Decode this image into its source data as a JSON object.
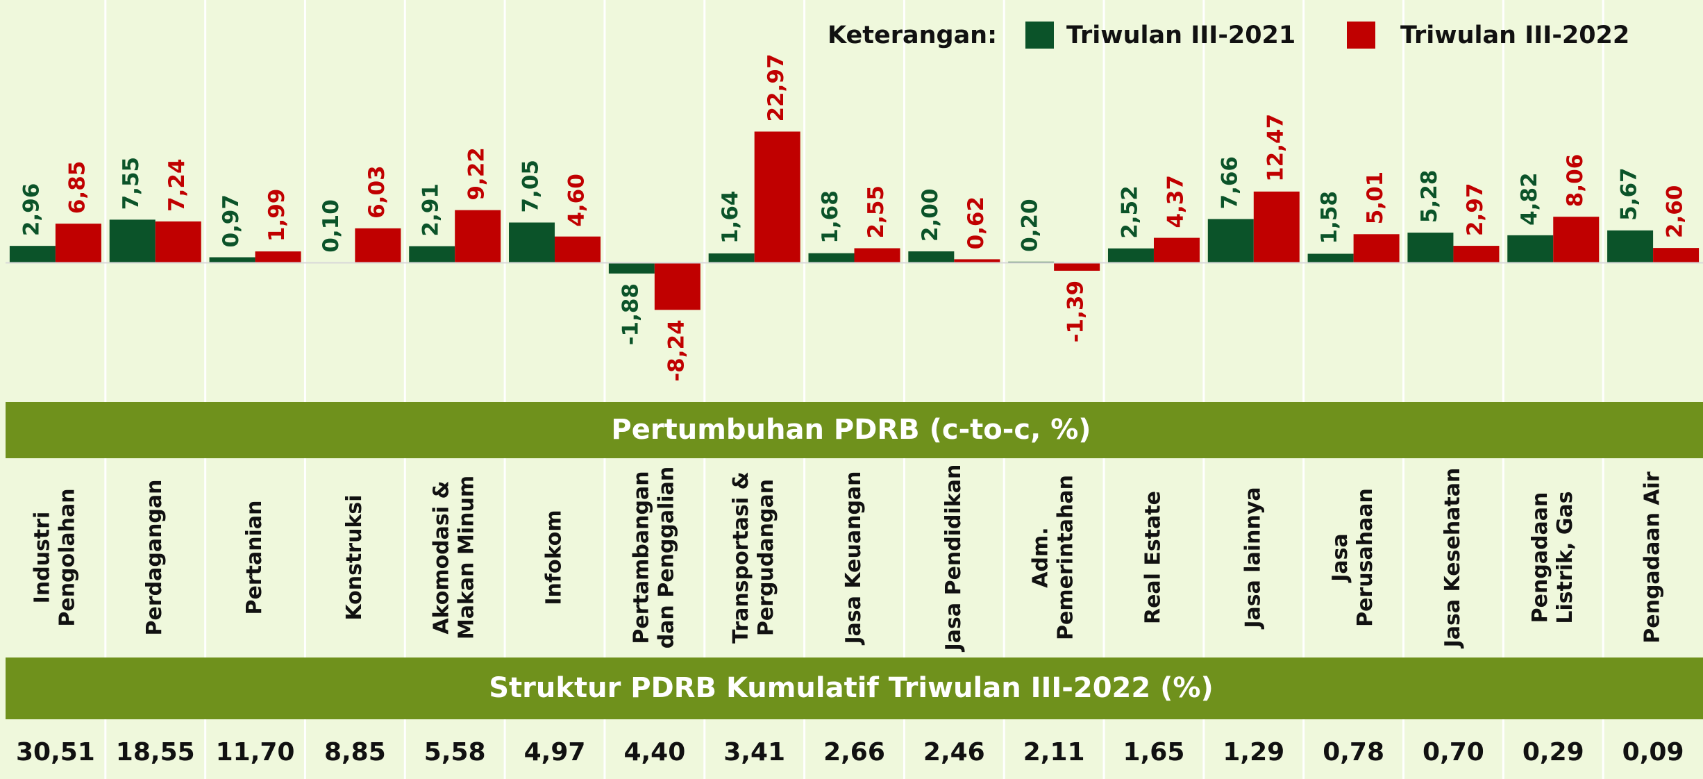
{
  "chart_data": {
    "type": "bar",
    "legend_title": "Keterangan:",
    "title": "Pertumbuhan PDRB (c-to-c, %)",
    "categories": [
      [
        "Industri",
        "Pengolahan"
      ],
      [
        "Perdagangan"
      ],
      [
        "Pertanian"
      ],
      [
        "Konstruksi"
      ],
      [
        "Akomodasi &",
        "Makan Minum"
      ],
      [
        "Infokom"
      ],
      [
        "Pertambangan",
        "dan Penggalian"
      ],
      [
        "Transportasi &",
        "Pergudangan"
      ],
      [
        "Jasa Keuangan"
      ],
      [
        "Jasa Pendidikan"
      ],
      [
        "Adm.",
        "Pemerintahan"
      ],
      [
        "Real Estate"
      ],
      [
        "Jasa lainnya"
      ],
      [
        "Jasa",
        "Perusahaan"
      ],
      [
        "Jasa Kesehatan"
      ],
      [
        "Pengadaan",
        "Listrik, Gas"
      ],
      [
        "Pengadaan Air"
      ]
    ],
    "series": [
      {
        "name": "Triwulan III-2021",
        "color": "#0b5329",
        "values": [
          2.96,
          7.55,
          0.97,
          0.1,
          2.91,
          7.05,
          -1.88,
          1.64,
          1.68,
          2.0,
          0.2,
          2.52,
          7.66,
          1.58,
          5.28,
          4.82,
          5.67
        ],
        "value_labels": [
          "2,96",
          "7,55",
          "0,97",
          "0,10",
          "2,91",
          "7,05",
          "-1,88",
          "1,64",
          "1,68",
          "2,00",
          "0,20",
          "2,52",
          "7,66",
          "1,58",
          "5,28",
          "4,82",
          "5,67"
        ]
      },
      {
        "name": "Triwulan III-2022",
        "color": "#c00000",
        "values": [
          6.85,
          7.24,
          1.99,
          6.03,
          9.22,
          4.6,
          -8.24,
          22.97,
          2.55,
          0.62,
          -1.39,
          4.37,
          12.47,
          5.01,
          2.97,
          8.06,
          2.6
        ],
        "value_labels": [
          "6,85",
          "7,24",
          "1,99",
          "6,03",
          "9,22",
          "4,60",
          "-8,24",
          "22,97",
          "2,55",
          "0,62",
          "-1,39",
          "4,37",
          "12,47",
          "5,01",
          "2,97",
          "8,06",
          "2,60"
        ]
      }
    ],
    "ylim": [
      -24,
      46
    ]
  },
  "structure": {
    "title": "Struktur PDRB Kumulatif Triwulan III-2022 (%)",
    "values": [
      "30,51",
      "18,55",
      "11,70",
      "8,85",
      "5,58",
      "4,97",
      "4,40",
      "3,41",
      "2,66",
      "2,46",
      "2,11",
      "1,65",
      "1,29",
      "0,78",
      "0,70",
      "0,29",
      "0,09"
    ]
  }
}
